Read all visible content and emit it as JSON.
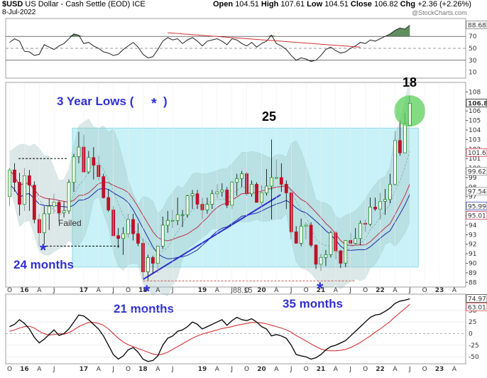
{
  "header": {
    "symbol": "$USD",
    "name": "US Dollar - Cash Settle (EOD)",
    "exchange": "ICE",
    "date": "8-Jul-2022",
    "open_label": "Open",
    "open": "104.51",
    "high_label": "High",
    "high": "107.61",
    "low_label": "Low",
    "low": "104.51",
    "close_label": "Close",
    "close": "106.82",
    "chg_label": "Chg",
    "chg": "+2.36 (+2.26%)",
    "watermark": "@StockCharts.com"
  },
  "colors": {
    "up": "#1a8a1a",
    "down": "#c0102a",
    "box_fill": "#bff0f6",
    "box_stroke": "#7fd4e0",
    "band_fill": "#9ebfbf",
    "blue_ma": "#1c2aa8",
    "red_ma": "#c0304a",
    "annotation": "#3030d0",
    "highlight": "#5ad05a"
  },
  "chart_data": [
    {
      "type": "line",
      "title": "RSI",
      "ylim": [
        0,
        100
      ],
      "ticks": [
        "90",
        "70",
        "50",
        "30",
        "10"
      ],
      "last_value_label": "88.68",
      "x": [
        "2015-10",
        "2015-11",
        "2015-12",
        "2016-01",
        "2016-02",
        "2016-03",
        "2016-04",
        "2016-05",
        "2016-06",
        "2016-07",
        "2016-08",
        "2016-09",
        "2016-10",
        "2016-11",
        "2016-12",
        "2017-01",
        "2017-02",
        "2017-03",
        "2017-04",
        "2017-05",
        "2017-06",
        "2017-07",
        "2017-08",
        "2017-09",
        "2017-10",
        "2017-11",
        "2017-12",
        "2018-01",
        "2018-02",
        "2018-03",
        "2018-04",
        "2018-05",
        "2018-06",
        "2018-07",
        "2018-08",
        "2018-09",
        "2018-10",
        "2018-11",
        "2018-12",
        "2019-01",
        "2019-02",
        "2019-03",
        "2019-04",
        "2019-05",
        "2019-06",
        "2019-07",
        "2019-08",
        "2019-09",
        "2019-10",
        "2019-11",
        "2019-12",
        "2020-01",
        "2020-02",
        "2020-03",
        "2020-04",
        "2020-05",
        "2020-06",
        "2020-07",
        "2020-08",
        "2020-09",
        "2020-10",
        "2020-11",
        "2020-12",
        "2021-01",
        "2021-02",
        "2021-03",
        "2021-04",
        "2021-05",
        "2021-06",
        "2021-07",
        "2021-08",
        "2021-09",
        "2021-10",
        "2021-11",
        "2021-12",
        "2022-01",
        "2022-02",
        "2022-03",
        "2022-04",
        "2022-05",
        "2022-06",
        "2022-07"
      ],
      "values": [
        60,
        66,
        62,
        45,
        44,
        38,
        40,
        56,
        52,
        48,
        54,
        58,
        66,
        74,
        72,
        58,
        60,
        54,
        50,
        44,
        42,
        38,
        40,
        48,
        54,
        60,
        52,
        40,
        34,
        36,
        48,
        62,
        68,
        64,
        66,
        58,
        64,
        68,
        62,
        54,
        62,
        64,
        66,
        62,
        56,
        66,
        64,
        58,
        54,
        60,
        52,
        58,
        62,
        72,
        58,
        54,
        48,
        38,
        30,
        34,
        32,
        28,
        30,
        38,
        48,
        52,
        46,
        42,
        44,
        50,
        54,
        60,
        58,
        64,
        62,
        66,
        70,
        74,
        80,
        84,
        82,
        88.68
      ],
      "trendline": {
        "from": [
          "2018-06",
          76
        ],
        "to": [
          "2021-09",
          52
        ]
      }
    },
    {
      "type": "bar",
      "subtype": "candlestick",
      "ylim": [
        87.5,
        109
      ],
      "yticks": [
        "108",
        "106",
        "105",
        "104",
        "103",
        "102",
        "101",
        "100",
        "99",
        "98",
        "97",
        "96",
        "95",
        "94",
        "93",
        "92",
        "91",
        "90",
        "89",
        "88"
      ],
      "value_labels": [
        "106.8",
        "101.6",
        "99.62",
        "97.54",
        "95.99",
        "95.01"
      ],
      "xticks": [
        "O",
        "16",
        "A",
        "J",
        "17",
        "A",
        "J",
        "O",
        "18",
        "A",
        "J",
        "19",
        "A",
        "J",
        "O",
        "20",
        "A",
        "J",
        "O",
        "21",
        "A",
        "J",
        "O",
        "22",
        "A",
        "J",
        "O",
        "23",
        "A"
      ],
      "ohlc": [
        [
          "2015-10",
          97,
          100,
          96,
          99.8
        ],
        [
          "2015-11",
          99.8,
          100.5,
          97.5,
          98.5
        ],
        [
          "2015-12",
          98.5,
          99.5,
          95,
          96.2
        ],
        [
          "2016-01",
          96.2,
          100,
          95.5,
          99.2
        ],
        [
          "2016-02",
          99.2,
          99.8,
          95.5,
          98.2
        ],
        [
          "2016-03",
          98.2,
          98.6,
          94.2,
          94.6
        ],
        [
          "2016-04",
          94.6,
          95.2,
          91.8,
          93.2
        ],
        [
          "2016-05",
          93.2,
          96,
          92,
          95.2
        ],
        [
          "2016-06",
          95.2,
          96.8,
          93.5,
          96
        ],
        [
          "2016-07",
          96,
          97.3,
          95.2,
          96.4
        ],
        [
          "2016-08",
          96.4,
          96.6,
          94.4,
          95.3
        ],
        [
          "2016-09",
          95.3,
          96.5,
          94.8,
          95.5
        ],
        [
          "2016-10",
          95.5,
          98.8,
          95.2,
          98.5
        ],
        [
          "2016-11",
          98.5,
          101.5,
          97.5,
          101.2
        ],
        [
          "2016-12",
          101.2,
          103.8,
          100.5,
          102.2
        ],
        [
          "2017-01",
          102.2,
          103.5,
          99.5,
          99.6
        ],
        [
          "2017-02",
          99.6,
          101.8,
          99.4,
          101.1
        ],
        [
          "2017-03",
          101.1,
          102.2,
          98.8,
          100.3
        ],
        [
          "2017-04",
          100.3,
          101.3,
          98.7,
          99.1
        ],
        [
          "2017-05",
          99.1,
          99.4,
          96.8,
          96.9
        ],
        [
          "2017-06",
          96.9,
          97.8,
          95.4,
          95.6
        ],
        [
          "2017-07",
          95.6,
          96,
          92.8,
          92.9
        ],
        [
          "2017-08",
          92.9,
          93.7,
          91.6,
          92.6
        ],
        [
          "2017-09",
          92.6,
          93.8,
          90.9,
          93.1
        ],
        [
          "2017-10",
          93.1,
          95.2,
          92.7,
          94.6
        ],
        [
          "2017-11",
          94.6,
          95.2,
          92.4,
          93.1
        ],
        [
          "2017-12",
          93.1,
          94.2,
          91.8,
          92.1
        ],
        [
          "2018-01",
          92.1,
          92.6,
          88.4,
          89.1
        ],
        [
          "2018-02",
          89.1,
          90.9,
          88.2,
          90.6
        ],
        [
          "2018-03",
          90.6,
          90.8,
          88.9,
          90.0
        ],
        [
          "2018-04",
          90.0,
          91.9,
          89.0,
          91.8
        ],
        [
          "2018-05",
          91.8,
          94.9,
          91.5,
          94.0
        ],
        [
          "2018-06",
          94.0,
          95.5,
          93.2,
          94.5
        ],
        [
          "2018-07",
          94.5,
          95.6,
          93.7,
          94.5
        ],
        [
          "2018-08",
          94.5,
          96.9,
          94.0,
          95.1
        ],
        [
          "2018-09",
          95.1,
          95.6,
          93.8,
          95.1
        ],
        [
          "2018-10",
          95.1,
          97.2,
          94.8,
          97.1
        ],
        [
          "2018-11",
          97.1,
          97.7,
          95.7,
          97.3
        ],
        [
          "2018-12",
          97.3,
          97.7,
          95.7,
          96.2
        ],
        [
          "2019-01",
          96.2,
          96.9,
          94.6,
          95.6
        ],
        [
          "2019-02",
          95.6,
          96.9,
          95.2,
          96.2
        ],
        [
          "2019-03",
          96.2,
          97.7,
          95.7,
          97.3
        ],
        [
          "2019-04",
          97.3,
          98.3,
          96.8,
          97.5
        ],
        [
          "2019-05",
          97.5,
          98.4,
          97.0,
          97.7
        ],
        [
          "2019-06",
          97.7,
          98.0,
          95.8,
          96.1
        ],
        [
          "2019-07",
          96.1,
          98.7,
          95.7,
          98.5
        ],
        [
          "2019-08",
          98.5,
          99.4,
          97.1,
          98.9
        ],
        [
          "2019-09",
          98.9,
          99.7,
          98.0,
          99.4
        ],
        [
          "2019-10",
          99.4,
          99.6,
          97.1,
          97.3
        ],
        [
          "2019-11",
          97.3,
          98.7,
          97.0,
          98.3
        ],
        [
          "2019-12",
          98.3,
          98.5,
          96.4,
          96.4
        ],
        [
          "2020-01",
          96.4,
          98.2,
          95.9,
          97.4
        ],
        [
          "2020-02",
          97.4,
          99.9,
          97.1,
          98.1
        ],
        [
          "2020-03",
          98.1,
          103.0,
          94.6,
          99.0
        ],
        [
          "2020-04",
          99.0,
          100.9,
          98.8,
          99.0
        ],
        [
          "2020-05",
          99.0,
          100.5,
          97.5,
          98.3
        ],
        [
          "2020-06",
          98.3,
          98.7,
          95.7,
          97.4
        ],
        [
          "2020-07",
          97.4,
          97.8,
          92.5,
          93.3
        ],
        [
          "2020-08",
          93.3,
          93.9,
          92.1,
          92.1
        ],
        [
          "2020-09",
          92.1,
          94.7,
          91.8,
          93.9
        ],
        [
          "2020-10",
          93.9,
          94.3,
          92.5,
          94.0
        ],
        [
          "2020-11",
          94.0,
          94.3,
          91.7,
          91.9
        ],
        [
          "2020-12",
          91.9,
          92.0,
          89.4,
          89.9
        ],
        [
          "2021-01",
          89.9,
          91.0,
          89.2,
          90.6
        ],
        [
          "2021-02",
          90.6,
          91.4,
          89.7,
          90.9
        ],
        [
          "2021-03",
          90.9,
          93.4,
          90.6,
          93.2
        ],
        [
          "2021-04",
          93.2,
          93.4,
          90.4,
          91.3
        ],
        [
          "2021-05",
          91.3,
          91.4,
          89.5,
          90.0
        ],
        [
          "2021-06",
          90.0,
          92.4,
          89.6,
          92.4
        ],
        [
          "2021-07",
          92.4,
          93.2,
          91.8,
          92.1
        ],
        [
          "2021-08",
          92.1,
          93.7,
          92.0,
          92.6
        ],
        [
          "2021-09",
          92.6,
          94.5,
          91.9,
          94.2
        ],
        [
          "2021-10",
          94.2,
          94.6,
          93.3,
          94.1
        ],
        [
          "2021-11",
          94.1,
          96.9,
          93.9,
          95.9
        ],
        [
          "2021-12",
          95.9,
          96.9,
          95.5,
          95.7
        ],
        [
          "2022-01",
          95.7,
          97.4,
          94.6,
          96.5
        ],
        [
          "2022-02",
          96.5,
          97.8,
          95.1,
          96.7
        ],
        [
          "2022-03",
          96.7,
          99.4,
          96.3,
          98.3
        ],
        [
          "2022-04",
          98.3,
          103.9,
          98.1,
          102.9
        ],
        [
          "2022-05",
          102.9,
          105.0,
          101.3,
          101.6
        ],
        [
          "2022-06",
          101.6,
          105.8,
          101.6,
          104.7
        ],
        [
          "2022-07",
          104.5,
          107.6,
          104.5,
          106.8
        ]
      ],
      "annotations": [
        {
          "text": "3 Year Lows (",
          "star": "*",
          "after": ")"
        },
        {
          "text": "25"
        },
        {
          "text": "18"
        },
        {
          "text": "Failed"
        },
        {
          "text": "24 months"
        },
        {
          "text": "21 months"
        },
        {
          "text": "35 months"
        },
        {
          "text": "88.15"
        }
      ]
    },
    {
      "type": "line",
      "title": "Momentum",
      "ylim": [
        -65,
        85
      ],
      "ticks": [
        "75",
        "50",
        "25",
        "0",
        "-25",
        "-50"
      ],
      "last_value_labels": [
        "74.97",
        "63.01"
      ],
      "xticks": [
        "O",
        "16",
        "A",
        "J",
        "17",
        "A",
        "J",
        "O",
        "18",
        "A",
        "J",
        "19",
        "A",
        "J",
        "O",
        "20",
        "A",
        "J",
        "O",
        "21",
        "A",
        "J",
        "O",
        "22",
        "A",
        "J",
        "O",
        "23",
        "A"
      ],
      "series": [
        {
          "name": "",
          "values": [
            15,
            20,
            30,
            22,
            10,
            -8,
            -20,
            -12,
            -2,
            8,
            -4,
            0,
            10,
            25,
            40,
            38,
            30,
            20,
            10,
            -5,
            -25,
            -45,
            -55,
            -48,
            -35,
            -30,
            -40,
            -55,
            -60,
            -58,
            -48,
            -25,
            -10,
            -5,
            5,
            8,
            15,
            25,
            20,
            10,
            15,
            20,
            25,
            30,
            18,
            28,
            35,
            30,
            28,
            32,
            25,
            15,
            10,
            -5,
            -2,
            -5,
            -10,
            -25,
            -45,
            -48,
            -50,
            -55,
            -52,
            -45,
            -35,
            -28,
            -25,
            -20,
            -15,
            -5,
            5,
            15,
            25,
            35,
            40,
            42,
            48,
            55,
            65,
            70,
            72,
            75
          ]
        },
        {
          "name": "",
          "values": [
            5,
            8,
            12,
            15,
            16,
            12,
            5,
            0,
            -3,
            -2,
            0,
            -1,
            2,
            8,
            15,
            20,
            24,
            24,
            22,
            18,
            10,
            0,
            -10,
            -18,
            -24,
            -28,
            -32,
            -36,
            -40,
            -44,
            -46,
            -44,
            -40,
            -34,
            -28,
            -22,
            -16,
            -10,
            -5,
            -1,
            2,
            5,
            8,
            11,
            13,
            15,
            18,
            20,
            22,
            24,
            24,
            23,
            21,
            18,
            15,
            12,
            8,
            3,
            -4,
            -10,
            -16,
            -22,
            -28,
            -33,
            -36,
            -37,
            -37,
            -36,
            -34,
            -30,
            -25,
            -19,
            -12,
            -5,
            3,
            10,
            18,
            26,
            36,
            45,
            54,
            63
          ]
        }
      ]
    }
  ]
}
